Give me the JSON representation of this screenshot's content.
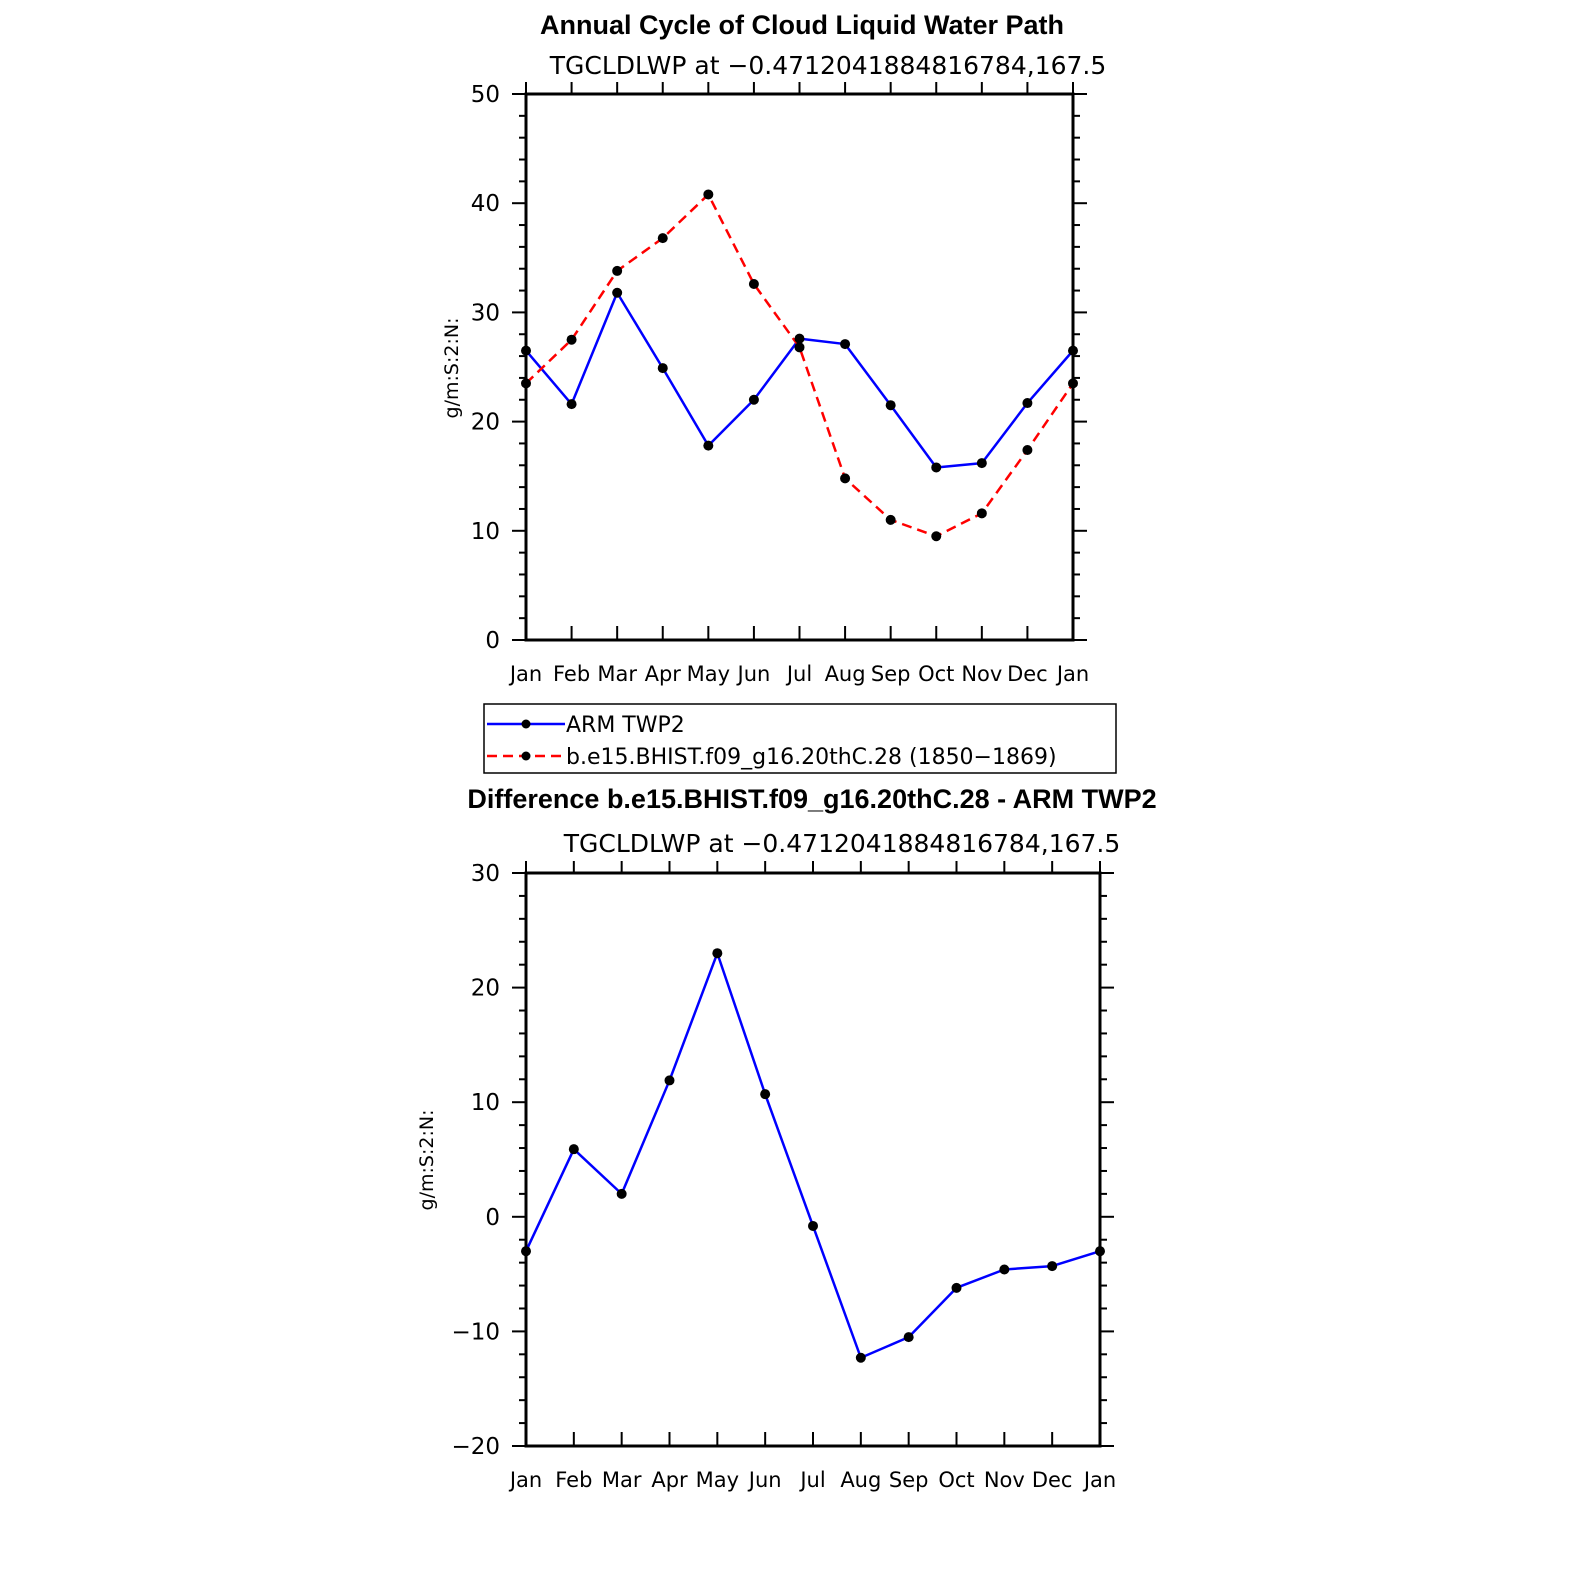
{
  "chart_data": [
    {
      "type": "line",
      "title": "Annual Cycle of Cloud Liquid Water Path",
      "subtitle": "TGCLDLWP at −0.4712041884816784,167.5",
      "ylabel": "g/m:S:2:N:",
      "xlabel": "",
      "categories": [
        "Jan",
        "Feb",
        "Mar",
        "Apr",
        "May",
        "Jun",
        "Jul",
        "Aug",
        "Sep",
        "Oct",
        "Nov",
        "Dec",
        "Jan"
      ],
      "ylim": [
        0,
        50
      ],
      "yticks": [
        "0",
        "10",
        "20",
        "30",
        "40",
        "50"
      ],
      "series": [
        {
          "name": "ARM  TWP2",
          "color": "#0000ff",
          "dash": "solid",
          "values": [
            26.5,
            21.6,
            31.8,
            24.9,
            17.8,
            22.0,
            27.6,
            27.1,
            21.5,
            15.8,
            16.2,
            21.7,
            26.5
          ]
        },
        {
          "name": "b.e15.BHIST.f09_g16.20thC.28 (1850−1869)",
          "color": "#ff0000",
          "dash": "dashed",
          "values": [
            23.5,
            27.5,
            33.8,
            36.8,
            40.8,
            32.6,
            26.8,
            14.8,
            11.0,
            9.5,
            11.6,
            17.4,
            23.5
          ]
        }
      ],
      "legend": [
        "ARM  TWP2",
        "b.e15.BHIST.f09_g16.20thC.28 (1850−1869)"
      ]
    },
    {
      "type": "line",
      "title": "Difference b.e15.BHIST.f09_g16.20thC.28 - ARM TWP2",
      "subtitle": "TGCLDLWP at −0.4712041884816784,167.5",
      "ylabel": "g/m:S:2:N:",
      "xlabel": "",
      "categories": [
        "Jan",
        "Feb",
        "Mar",
        "Apr",
        "May",
        "Jun",
        "Jul",
        "Aug",
        "Sep",
        "Oct",
        "Nov",
        "Dec",
        "Jan"
      ],
      "ylim": [
        -20,
        30
      ],
      "yticks": [
        "−20",
        "−10",
        "0",
        "10",
        "20",
        "30"
      ],
      "series": [
        {
          "name": "Difference",
          "color": "#0000ff",
          "dash": "solid",
          "values": [
            -3.0,
            5.9,
            2.0,
            11.9,
            23.0,
            10.7,
            -0.8,
            -12.3,
            -10.5,
            -6.2,
            -4.6,
            -4.3,
            -3.0
          ]
        }
      ]
    }
  ]
}
